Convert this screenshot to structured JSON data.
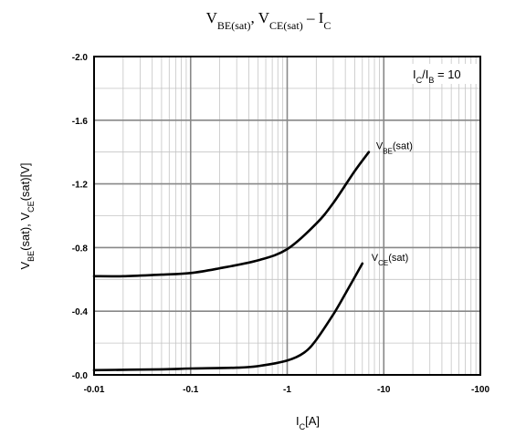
{
  "chart_data": {
    "type": "line",
    "title": {
      "parts": [
        {
          "t": "V"
        },
        {
          "t": "BE(sat)",
          "sub": true
        },
        {
          "t": ", V"
        },
        {
          "t": "CE(sat)",
          "sub": true
        },
        {
          "t": " – I"
        },
        {
          "t": "C",
          "sub": true
        }
      ]
    },
    "xlabel": {
      "parts": [
        {
          "t": "I"
        },
        {
          "t": "C",
          "sub": true
        },
        {
          "t": "[A]"
        }
      ]
    },
    "ylabel": {
      "parts": [
        {
          "t": "V"
        },
        {
          "t": "BE",
          "sub": true
        },
        {
          "t": "(sat), V"
        },
        {
          "t": "CE",
          "sub": true
        },
        {
          "t": "(sat)[V]"
        }
      ]
    },
    "x_scale": "log",
    "xlim": [
      -0.01,
      -100
    ],
    "ylim": [
      0,
      -2.0
    ],
    "x_ticks": [
      "-0.01",
      "-0.1",
      "-1",
      "-10",
      "-100"
    ],
    "y_ticks": [
      "-2.0",
      "-1.6",
      "-1.2",
      "-0.8",
      "-0.4",
      "-0.0"
    ],
    "grid": true,
    "annotation": {
      "parts": [
        {
          "t": "I"
        },
        {
          "t": "C",
          "sub": true
        },
        {
          "t": "/I"
        },
        {
          "t": "B",
          "sub": true
        },
        {
          "t": " = 10"
        }
      ]
    },
    "series": [
      {
        "name": {
          "parts": [
            {
              "t": "V"
            },
            {
              "t": "BE",
              "sub": true
            },
            {
              "t": "(sat)"
            }
          ]
        },
        "x": [
          -0.01,
          -0.02,
          -0.05,
          -0.1,
          -0.2,
          -0.5,
          -1,
          -2,
          -3,
          -5,
          -7
        ],
        "y": [
          -0.62,
          -0.62,
          -0.63,
          -0.64,
          -0.67,
          -0.72,
          -0.79,
          -0.95,
          -1.08,
          -1.28,
          -1.4
        ]
      },
      {
        "name": {
          "parts": [
            {
              "t": "V"
            },
            {
              "t": "CE",
              "sub": true
            },
            {
              "t": "(sat)"
            }
          ]
        },
        "x": [
          -0.01,
          -0.05,
          -0.1,
          -0.3,
          -0.5,
          -1,
          -1.5,
          -2,
          -3,
          -4,
          -6
        ],
        "y": [
          -0.03,
          -0.035,
          -0.04,
          -0.045,
          -0.055,
          -0.09,
          -0.14,
          -0.22,
          -0.38,
          -0.51,
          -0.7
        ]
      }
    ]
  }
}
